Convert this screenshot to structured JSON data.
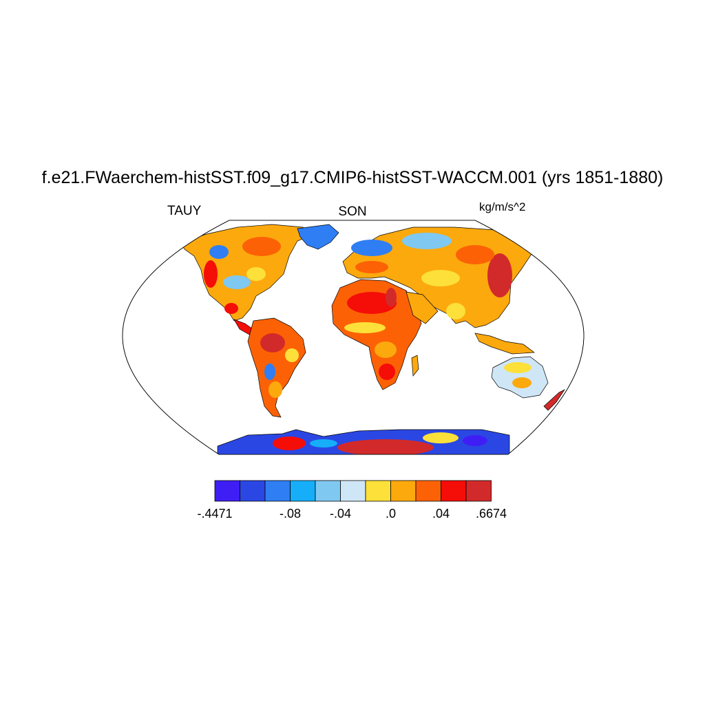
{
  "title": "f.e21.FWaerchem-histSST.f09_g17.CMIP6-histSST-WACCM.001 (yrs 1851-1880)",
  "left_label": "TAUY",
  "center_label": "SON",
  "right_label": "kg/m/s^2",
  "colorbar": {
    "colors": [
      "#3f1ef5",
      "#2b47e3",
      "#2f7ef3",
      "#16aef9",
      "#7fc8f1",
      "#cfe6f7",
      "#fde03a",
      "#fca90e",
      "#fc6205",
      "#f50d08",
      "#d22a2a"
    ],
    "labels": [
      {
        "text": "-.4471",
        "boundary": 0
      },
      {
        "text": "-.08",
        "boundary": 3
      },
      {
        "text": "-.04",
        "boundary": 5
      },
      {
        "text": ".0",
        "boundary": 7
      },
      {
        "text": ".04",
        "boundary": 9
      },
      {
        "text": ".6674",
        "boundary": 11
      }
    ]
  },
  "map": {
    "projection": "robinson",
    "background": "#ffffff",
    "coastline_color": "#000000"
  }
}
